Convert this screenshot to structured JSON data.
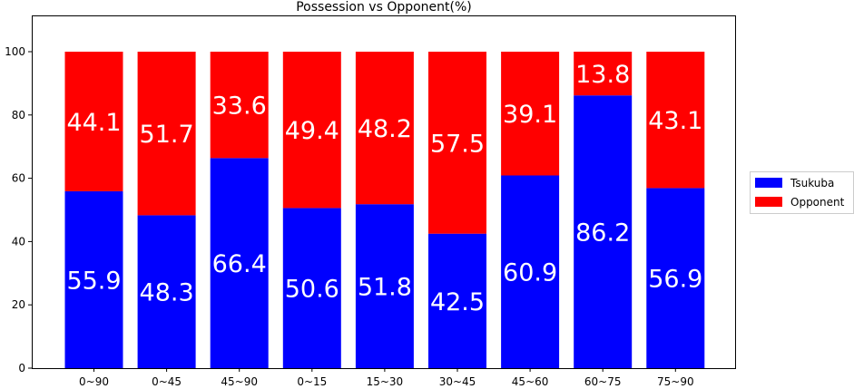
{
  "chart_data": {
    "type": "bar",
    "stacked": true,
    "title": "Possession vs Opponent(%)",
    "xlabel": "",
    "ylabel": "",
    "categories": [
      "0~90",
      "0~45",
      "45~90",
      "0~15",
      "15~30",
      "30~45",
      "45~60",
      "60~75",
      "75~90"
    ],
    "series": [
      {
        "name": "Tsukuba",
        "color": "#0000ff",
        "values": [
          55.9,
          48.3,
          66.4,
          50.6,
          51.8,
          42.5,
          60.9,
          86.2,
          56.9
        ]
      },
      {
        "name": "Opponent",
        "color": "#ff0000",
        "values": [
          44.1,
          51.7,
          33.6,
          49.4,
          48.2,
          57.5,
          39.1,
          13.8,
          43.1
        ]
      }
    ],
    "data_labels": true,
    "ylim": [
      0,
      110
    ],
    "yticks": [
      0,
      20,
      40,
      60,
      80,
      100
    ],
    "grid": false,
    "legend_position": "right"
  }
}
